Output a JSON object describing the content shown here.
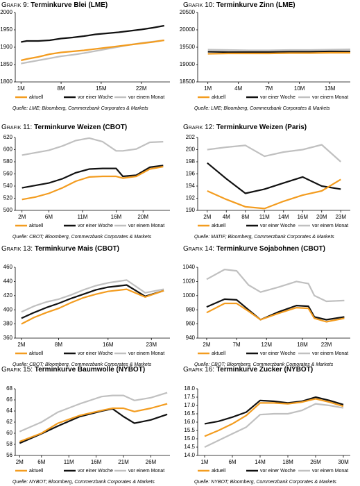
{
  "chart_data": [
    {
      "type": "line",
      "label": "Grafik 9:",
      "title": "Terminkurve Blei (LME)",
      "source": "Quelle: LME; Bloomberg, Commerzbank Corporates & Markets",
      "x": [
        1,
        2,
        4,
        6,
        8,
        10,
        12,
        14,
        16,
        18,
        20,
        22,
        24,
        26
      ],
      "xlim": [
        0,
        27
      ],
      "xticks": [
        {
          "value": 1,
          "label": "1M"
        },
        {
          "value": 8,
          "label": "8M"
        },
        {
          "value": 15,
          "label": "15M"
        },
        {
          "value": 22,
          "label": "22M"
        }
      ],
      "ylim": [
        1800,
        2000
      ],
      "yticks": [
        1800,
        1850,
        1900,
        1950,
        2000
      ],
      "series": [
        {
          "name": "aktuell",
          "color": "#f39c1f",
          "values": [
            1862,
            1866,
            1872,
            1880,
            1885,
            1888,
            1891,
            1895,
            1899,
            1903,
            1907,
            1911,
            1915,
            1920
          ]
        },
        {
          "name": "vor einer Woche",
          "color": "#111111",
          "values": [
            1915,
            1918,
            1918,
            1920,
            1925,
            1928,
            1932,
            1937,
            1940,
            1943,
            1947,
            1951,
            1956,
            1962
          ]
        },
        {
          "name": "vor einem Monat",
          "color": "#c0c0c0",
          "values": [
            1853,
            1856,
            1862,
            1868,
            1874,
            1878,
            1883,
            1889,
            1895,
            1901,
            1907,
            1912,
            1916,
            1920
          ]
        }
      ]
    },
    {
      "type": "line",
      "label": "Grafik 10:",
      "title": "Terminkurve Zinn (LME)",
      "source": "Quelle: LME; Bloomberg, Commerzbank Corporates & Markets",
      "x": [
        1,
        3,
        5,
        7,
        9,
        11,
        13,
        15
      ],
      "xlim": [
        0,
        15
      ],
      "xticks": [
        {
          "value": 1,
          "label": "1M"
        },
        {
          "value": 4,
          "label": "4M"
        },
        {
          "value": 7,
          "label": "7M"
        },
        {
          "value": 10,
          "label": "10M"
        },
        {
          "value": 13,
          "label": "13M"
        }
      ],
      "ylim": [
        18500,
        20500
      ],
      "yticks": [
        18500,
        19000,
        19500,
        20000,
        20500
      ],
      "series": [
        {
          "name": "aktuell",
          "color": "#f39c1f",
          "values": [
            19310,
            19320,
            19320,
            19320,
            19330,
            19330,
            19340,
            19340
          ]
        },
        {
          "name": "vor einer Woche",
          "color": "#111111",
          "values": [
            19370,
            19360,
            19360,
            19360,
            19370,
            19370,
            19380,
            19380
          ]
        },
        {
          "name": "vor einem Monat",
          "color": "#c0c0c0",
          "values": [
            19430,
            19420,
            19410,
            19410,
            19420,
            19420,
            19430,
            19440
          ]
        }
      ]
    },
    {
      "type": "line",
      "label": "Grafik 11:",
      "title": "Terminkurve Weizen (CBOT)",
      "source": "Quelle: CBOT; Bloomberg, Commerzbank Corporates & Markets",
      "x": [
        2,
        4,
        6,
        8,
        10,
        12,
        14,
        16,
        17,
        19,
        21,
        23
      ],
      "xlim": [
        1,
        24
      ],
      "xticks": [
        {
          "value": 2,
          "label": "2M"
        },
        {
          "value": 6,
          "label": "6M"
        },
        {
          "value": 11,
          "label": "11M"
        },
        {
          "value": 16,
          "label": "16M"
        },
        {
          "value": 20,
          "label": "20M"
        }
      ],
      "ylim": [
        500,
        620
      ],
      "yticks": [
        500,
        520,
        540,
        560,
        580,
        600,
        620
      ],
      "series": [
        {
          "name": "aktuell",
          "color": "#f39c1f",
          "values": [
            518,
            522,
            528,
            537,
            548,
            555,
            556,
            556,
            553,
            556,
            568,
            572
          ]
        },
        {
          "name": "vor einer Woche",
          "color": "#111111",
          "values": [
            537,
            541,
            545,
            552,
            562,
            568,
            569,
            569,
            556,
            558,
            571,
            574
          ]
        },
        {
          "name": "vor einem Monat",
          "color": "#c0c0c0",
          "values": [
            591,
            595,
            599,
            606,
            615,
            619,
            613,
            598,
            598,
            601,
            612,
            613
          ]
        }
      ]
    },
    {
      "type": "line",
      "label": "Grafik 12:",
      "title": "Terminkurve Weizen (Paris)",
      "source": "Quelle: MATIF; Bloomberg, Commerzbank Corporates & Markets",
      "categories": [
        "2M",
        "4M",
        "8M",
        "11M",
        "14M",
        "16M",
        "20M",
        "23M"
      ],
      "ylim": [
        190,
        202
      ],
      "yticks": [
        190,
        192,
        194,
        196,
        198,
        200,
        202
      ],
      "series": [
        {
          "name": "aktuell",
          "color": "#f39c1f",
          "values": [
            193.2,
            191.8,
            190.6,
            190.3,
            191.5,
            192.5,
            193.2,
            195.1
          ]
        },
        {
          "name": "vor einer Woche",
          "color": "#111111",
          "values": [
            197.8,
            195.2,
            192.8,
            193.5,
            194.5,
            195.5,
            194,
            193.5
          ]
        },
        {
          "name": "vor einem Monat",
          "color": "#c0c0c0",
          "values": [
            200,
            200.4,
            200.7,
            198.9,
            199.6,
            200,
            200.8,
            198
          ]
        }
      ]
    },
    {
      "type": "line",
      "label": "Grafik 13:",
      "title": "Terminkurve Mais (CBOT)",
      "source": "Quelle: CBOT; Bloomberg, Commerzbank Corporates & Markets",
      "x": [
        2,
        4,
        6,
        8,
        10,
        12,
        14,
        16,
        19,
        22,
        25
      ],
      "xlim": [
        1,
        26
      ],
      "xticks": [
        {
          "value": 2,
          "label": "2M"
        },
        {
          "value": 8,
          "label": "8M"
        },
        {
          "value": 16,
          "label": "16M"
        },
        {
          "value": 23,
          "label": "23M"
        }
      ],
      "ylim": [
        360,
        460
      ],
      "yticks": [
        360,
        380,
        400,
        420,
        440,
        460
      ],
      "series": [
        {
          "name": "aktuell",
          "color": "#f39c1f",
          "values": [
            380,
            389,
            396,
            402,
            410,
            417,
            422,
            426,
            429,
            418,
            427
          ]
        },
        {
          "name": "vor einer Woche",
          "color": "#111111",
          "values": [
            388,
            396,
            403,
            409,
            416,
            422,
            428,
            432,
            435,
            419,
            427
          ]
        },
        {
          "name": "vor einem Monat",
          "color": "#c0c0c0",
          "values": [
            397,
            405,
            411,
            415,
            421,
            428,
            434,
            438,
            442,
            424,
            429
          ]
        }
      ]
    },
    {
      "type": "line",
      "label": "Grafik 14:",
      "title": "Terminkurve Sojabohnen (CBOT)",
      "source": "Quelle: CBOT; Bloomberg, Commerzbank Corporates & Markets",
      "x": [
        2,
        5,
        7,
        9,
        11,
        14,
        17,
        19,
        20,
        22,
        25
      ],
      "xlim": [
        0.5,
        26
      ],
      "xticks": [
        {
          "value": 2,
          "label": "2M"
        },
        {
          "value": 7,
          "label": "7M"
        },
        {
          "value": 12,
          "label": "12M"
        },
        {
          "value": 18,
          "label": "18M"
        },
        {
          "value": 22,
          "label": "22M"
        }
      ],
      "ylim": [
        940,
        1040
      ],
      "yticks": [
        940,
        960,
        980,
        1000,
        1020,
        1040
      ],
      "series": [
        {
          "name": "aktuell",
          "color": "#f39c1f",
          "values": [
            976,
            989,
            989,
            978,
            966,
            975,
            983,
            982,
            968,
            963,
            968
          ]
        },
        {
          "name": "vor einer Woche",
          "color": "#111111",
          "values": [
            984,
            995,
            994,
            980,
            966,
            977,
            986,
            985,
            970,
            966,
            970
          ]
        },
        {
          "name": "vor einem Monat",
          "color": "#c0c0c0",
          "values": [
            1023,
            1037,
            1035,
            1015,
            1005,
            1012,
            1020,
            1017,
            1000,
            992,
            993
          ]
        }
      ]
    },
    {
      "type": "line",
      "label": "Grafik 15:",
      "title": "Terminkurve Baumwolle (NYBOT)",
      "source": "Quelle: NYBOT; Bloomberg, Commerzbank Corporates & Markets",
      "x": [
        2,
        6,
        9,
        13,
        17,
        19,
        21,
        23,
        26,
        29
      ],
      "xlim": [
        1.2,
        29.5
      ],
      "xticks": [
        {
          "value": 2,
          "label": "2M"
        },
        {
          "value": 6,
          "label": "6M"
        },
        {
          "value": 11,
          "label": "11M"
        },
        {
          "value": 16,
          "label": "16M"
        },
        {
          "value": 21,
          "label": "21M"
        },
        {
          "value": 26,
          "label": "26M"
        }
      ],
      "ylim": [
        56,
        68
      ],
      "yticks": [
        56,
        58,
        60,
        62,
        64,
        66,
        68
      ],
      "series": [
        {
          "name": "aktuell",
          "color": "#f39c1f",
          "values": [
            58.5,
            60,
            61.8,
            63.2,
            64.1,
            64.5,
            64.5,
            63.9,
            64.5,
            65.3
          ]
        },
        {
          "name": "vor einer Woche",
          "color": "#111111",
          "values": [
            58.2,
            59.9,
            61.3,
            63,
            64,
            64.4,
            63,
            61.8,
            62.4,
            63.4
          ]
        },
        {
          "name": "vor einem Monat",
          "color": "#c0c0c0",
          "values": [
            60.3,
            62,
            63.8,
            65.3,
            66.6,
            66.8,
            66.8,
            65.9,
            66.4,
            67.3
          ]
        }
      ]
    },
    {
      "type": "line",
      "label": "Grafik 16:",
      "title": "Terminkurve Zucker (NYBOT)",
      "source": "Quelle: NYBOT; Bloomberg, Commerzbank Corporates & Markets",
      "categories": [
        "1M",
        null,
        "6M",
        null,
        "14M",
        null,
        "18M",
        null,
        "26M",
        null,
        "30M"
      ],
      "ylim": [
        14,
        18
      ],
      "yticks": [
        {
          "value": 14,
          "label": "14.0"
        },
        {
          "value": 14.5,
          "label": "14.5"
        },
        {
          "value": 15,
          "label": "15.0"
        },
        {
          "value": 15.5,
          "label": "15.5"
        },
        {
          "value": 16,
          "label": "16.0"
        },
        {
          "value": 16.5,
          "label": "16.5"
        },
        {
          "value": 17,
          "label": "17.0"
        },
        {
          "value": 17.5,
          "label": "17.5"
        },
        {
          "value": 18,
          "label": "18.0"
        }
      ],
      "series": [
        {
          "name": "aktuell",
          "color": "#f39c1f",
          "values": [
            15.15,
            15.5,
            15.9,
            16.4,
            17.15,
            17.15,
            17.1,
            17.2,
            17.4,
            17.2,
            16.95
          ]
        },
        {
          "name": "vor einer Woche",
          "color": "#111111",
          "values": [
            15.9,
            16.05,
            16.3,
            16.6,
            17.3,
            17.25,
            17.15,
            17.25,
            17.5,
            17.3,
            17.05
          ]
        },
        {
          "name": "vor einem Monat",
          "color": "#c0c0c0",
          "values": [
            14.5,
            14.9,
            15.3,
            15.7,
            16.45,
            16.5,
            16.5,
            16.7,
            17.1,
            17,
            16.85
          ]
        }
      ]
    }
  ]
}
